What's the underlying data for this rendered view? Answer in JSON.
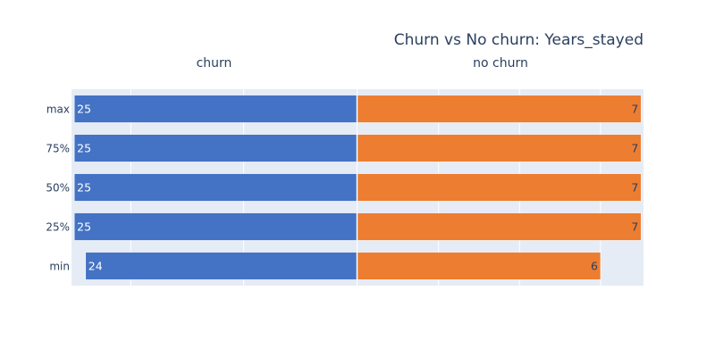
{
  "chart_data": {
    "type": "bar",
    "orientation": "horizontal",
    "title": "Churn vs No churn: Years_stayed",
    "categories": [
      "max",
      "75%",
      "50%",
      "25%",
      "min"
    ],
    "panels": [
      {
        "name": "churn",
        "values": [
          25,
          25,
          25,
          25,
          24
        ],
        "labels": [
          "25",
          "25",
          "25",
          "25",
          "24"
        ],
        "xlim": [
          25.25,
          0
        ],
        "reversed": true,
        "color": "#4472c4",
        "label_color": "#ffffff",
        "gridlines": [
          20,
          10
        ]
      },
      {
        "name": "no churn",
        "values": [
          7,
          7,
          7,
          7,
          6
        ],
        "labels": [
          "7",
          "7",
          "7",
          "7",
          "6"
        ],
        "xlim": [
          0,
          7.06
        ],
        "reversed": false,
        "color": "#ed7d31",
        "label_color": "#2a3f5f",
        "gridlines": [
          2,
          4,
          6
        ]
      }
    ],
    "grid": true,
    "legend": "none",
    "plot_background": "#e5ecf6"
  }
}
